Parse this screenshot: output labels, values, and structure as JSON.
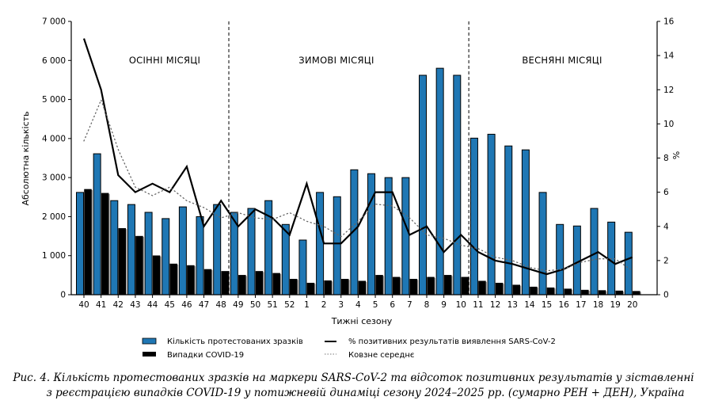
{
  "chart_data": {
    "type": "bar",
    "title": "",
    "xlabel": "Тижні сезону",
    "ylabel": "Абсолютна кількість",
    "ylabel_right": "%",
    "ylim": [
      0,
      7000
    ],
    "ylim_right": [
      0,
      16
    ],
    "yticks": [
      "0",
      "1 000",
      "2 000",
      "3 000",
      "4 000",
      "5 000",
      "6 000",
      "7 000"
    ],
    "yticks_right": [
      "0",
      "2",
      "4",
      "6",
      "8",
      "10",
      "12",
      "14",
      "16"
    ],
    "grid": false,
    "categories": [
      "40",
      "41",
      "42",
      "43",
      "44",
      "45",
      "46",
      "47",
      "48",
      "49",
      "50",
      "51",
      "52",
      "1",
      "2",
      "3",
      "4",
      "5",
      "6",
      "7",
      "8",
      "9",
      "10",
      "11",
      "12",
      "13",
      "14",
      "15",
      "16",
      "17",
      "18",
      "19",
      "20"
    ],
    "periods": [
      {
        "label": "ОСІННІ МІСЯЦІ",
        "from": "40",
        "to": "48"
      },
      {
        "label": "ЗИМОВІ МІСЯЦІ",
        "from": "49",
        "to": "10"
      },
      {
        "label": "ВЕСНЯНІ МІСЯЦІ",
        "from": "11",
        "to": "20"
      }
    ],
    "series": [
      {
        "name": "Кількість протестованих зразків",
        "type": "bar",
        "axis": "left",
        "color": "#1f77b4",
        "values": [
          2620,
          3610,
          2410,
          2310,
          2110,
          1950,
          2250,
          2000,
          2310,
          2110,
          2210,
          2410,
          1800,
          1400,
          2620,
          2510,
          3200,
          3100,
          3000,
          3000,
          5620,
          5800,
          5620,
          4010,
          4110,
          3810,
          3710,
          2620,
          1800,
          1760,
          2210,
          1860,
          1600
        ]
      },
      {
        "name": "Випадки COVID-19",
        "type": "bar",
        "axis": "left",
        "color": "#000000",
        "values": [
          2700,
          2600,
          1700,
          1500,
          1000,
          790,
          750,
          650,
          600,
          500,
          600,
          550,
          400,
          300,
          360,
          400,
          350,
          500,
          450,
          400,
          450,
          500,
          450,
          350,
          300,
          250,
          200,
          180,
          150,
          120,
          110,
          100,
          90
        ]
      },
      {
        "name": "% позитивних результатів виявлення SARS-CoV-2",
        "type": "line",
        "axis": "right",
        "color": "#000000",
        "values": [
          15.0,
          12.0,
          7.0,
          6.0,
          6.5,
          6.0,
          7.5,
          4.0,
          5.5,
          4.0,
          5.0,
          4.5,
          3.5,
          6.5,
          3.0,
          3.0,
          4.0,
          6.0,
          6.0,
          3.5,
          4.0,
          2.5,
          3.5,
          2.5,
          2.0,
          1.8,
          1.5,
          1.2,
          1.5,
          2.0,
          2.5,
          1.8,
          2.2
        ]
      },
      {
        "name": "Ковзне середнє",
        "type": "line-dotted",
        "axis": "right",
        "color": "#555555",
        "values": [
          9.0,
          11.4,
          8.5,
          6.3,
          5.8,
          6.3,
          5.5,
          5.1,
          4.5,
          4.8,
          4.5,
          4.4,
          4.8,
          4.3,
          4.0,
          3.4,
          4.3,
          5.3,
          5.2,
          4.5,
          3.5,
          3.3,
          2.9,
          2.7,
          2.2,
          2.0,
          1.6,
          1.4,
          1.5,
          1.9,
          2.1,
          2.1,
          1.4
        ]
      }
    ],
    "legend_position": "bottom"
  },
  "legend": {
    "items": [
      {
        "label": "Кількість протестованих зразків",
        "kind": "bar",
        "color": "#1f77b4"
      },
      {
        "label": "Випадки COVID-19",
        "kind": "bar",
        "color": "#000000"
      },
      {
        "label": "% позитивних результатів виявлення SARS-CoV-2",
        "kind": "line",
        "color": "#000000"
      },
      {
        "label": "Ковзне середнє",
        "kind": "dotted",
        "color": "#555555"
      }
    ]
  },
  "caption": {
    "line1": "Рис. 4. Кількість протестованих зразків на маркери SARS-CoV-2 та відсоток позитивних результатів у зіставленні",
    "line2": "з реєстрацією випадків COVID-19 у потижневій динаміці сезону 2024–2025 рр. (сумарно РЕН + ДЕН), Україна"
  }
}
